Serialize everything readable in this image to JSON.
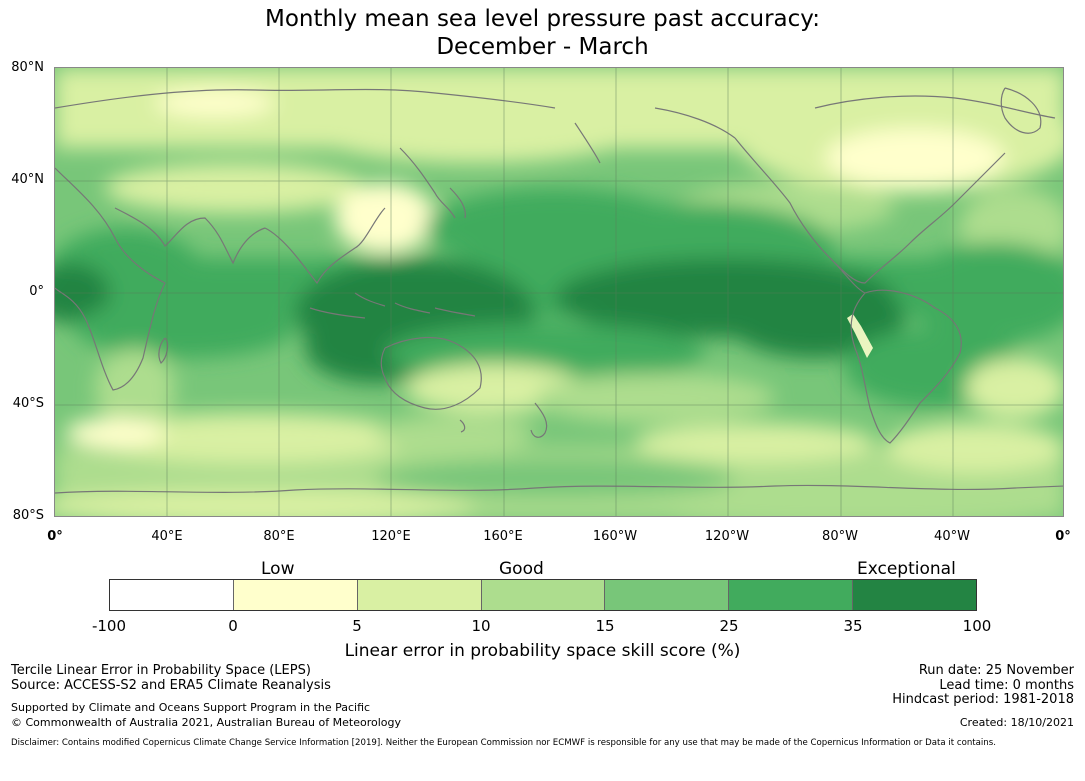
{
  "title": {
    "line1": "Monthly mean sea level pressure past accuracy:",
    "line2": "December - March"
  },
  "map": {
    "lat_labels": [
      "80°N",
      "40°N",
      "0°",
      "40°S",
      "80°S"
    ],
    "lon_labels": [
      "0°",
      "40°E",
      "80°E",
      "120°E",
      "160°E",
      "160°W",
      "120°W",
      "80°W",
      "40°W",
      "0°"
    ],
    "land_outline_color": "#777777",
    "grid_color": "#5a7a5a"
  },
  "legend": {
    "categories": [
      "Low",
      "Good",
      "Exceptional"
    ],
    "ticks": [
      "-100",
      "0",
      "5",
      "10",
      "15",
      "25",
      "35",
      "100"
    ],
    "colors": [
      "#ffffff",
      "#ffffcc",
      "#d9f0a3",
      "#addd8e",
      "#78c679",
      "#41ab5d",
      "#238443"
    ],
    "label": "Linear error in probability space skill score (%)"
  },
  "footer": {
    "left_line1": "Tercile Linear Error in Probability Space (LEPS)",
    "left_line2": "Source: ACCESS-S2 and ERA5 Climate Reanalysis",
    "left_line3": "Supported by Climate and Oceans Support Program in the Pacific",
    "left_line4": "© Commonwealth of Australia 2021, Australian Bureau of Meteorology",
    "run_date": "Run date: 25 November",
    "lead_time": "Lead time: 0 months",
    "hindcast": "Hindcast period: 1981-2018",
    "created": "Created: 18/10/2021",
    "disclaimer": "Disclaimer: Contains modified Copernicus Climate Change Service Information [2019]. Neither the European Commission nor ECMWF is responsible for any use that may be made of the Copernicus Information or Data it contains."
  }
}
